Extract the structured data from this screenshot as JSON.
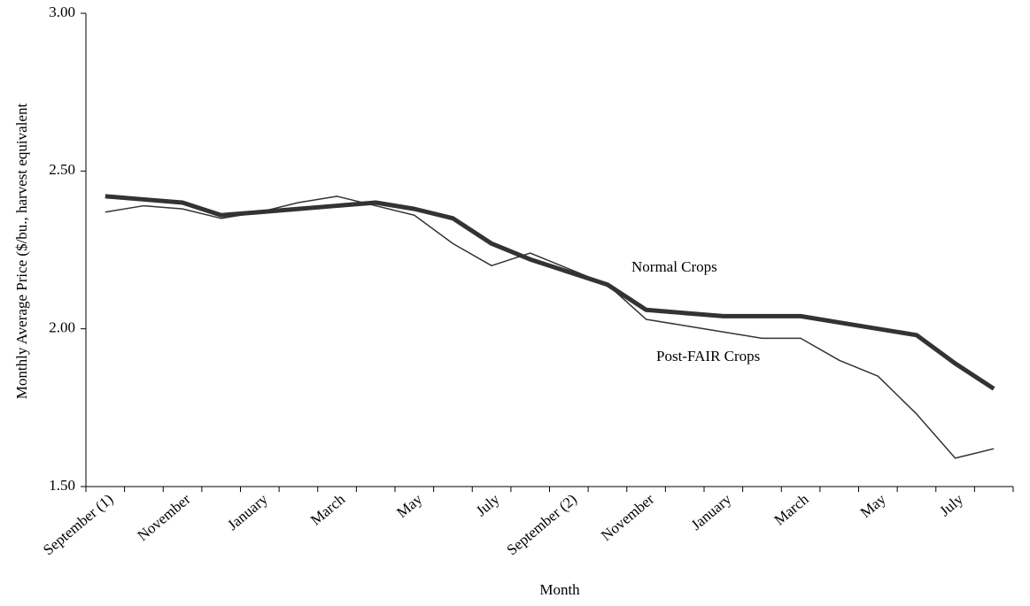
{
  "chart_data": {
    "type": "line",
    "y_label": "Monthly Average Price ($/bu., harvest equivalent",
    "x_label": "Month",
    "categories": [
      "September (1)",
      null,
      "November",
      null,
      "January",
      null,
      "March",
      null,
      "May",
      null,
      "July",
      null,
      "September (2)",
      null,
      "November",
      null,
      "January",
      null,
      "March",
      null,
      "May",
      null,
      "July",
      null
    ],
    "series": [
      {
        "name": "Normal Crops",
        "color": "#333333",
        "width": 5,
        "values": [
          2.42,
          2.41,
          2.4,
          2.36,
          2.37,
          2.38,
          2.39,
          2.4,
          2.38,
          2.35,
          2.27,
          2.22,
          2.18,
          2.14,
          2.06,
          2.05,
          2.04,
          2.04,
          2.04,
          2.02,
          2.0,
          1.98,
          1.89,
          1.81
        ]
      },
      {
        "name": "Post-FAIR Crops",
        "color": "#333333",
        "width": 1.5,
        "values": [
          2.37,
          2.39,
          2.38,
          2.35,
          2.37,
          2.4,
          2.42,
          2.39,
          2.36,
          2.27,
          2.2,
          2.24,
          2.19,
          2.14,
          2.03,
          2.01,
          1.99,
          1.97,
          1.97,
          1.9,
          1.85,
          1.73,
          1.59,
          1.62
        ]
      }
    ],
    "ylim": [
      1.5,
      3.0
    ],
    "yticks": [
      {
        "value": 1.5,
        "label": "1.50"
      },
      {
        "value": 2.0,
        "label": "2.00"
      },
      {
        "value": 2.5,
        "label": "2.50"
      },
      {
        "value": 3.0,
        "label": "3.00"
      }
    ],
    "grid": false
  }
}
